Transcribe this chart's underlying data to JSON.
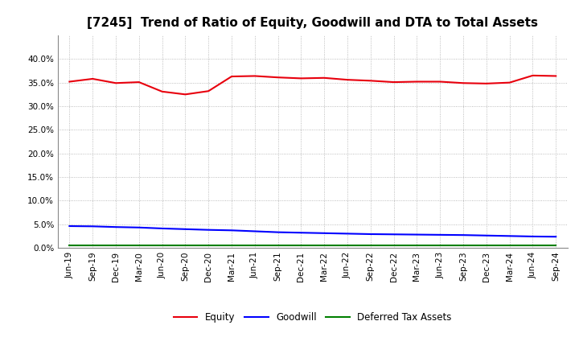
{
  "title": "[7245]  Trend of Ratio of Equity, Goodwill and DTA to Total Assets",
  "x_labels": [
    "Jun-19",
    "Sep-19",
    "Dec-19",
    "Mar-20",
    "Jun-20",
    "Sep-20",
    "Dec-20",
    "Mar-21",
    "Jun-21",
    "Sep-21",
    "Dec-21",
    "Mar-22",
    "Jun-22",
    "Sep-22",
    "Dec-22",
    "Mar-23",
    "Jun-23",
    "Sep-23",
    "Dec-23",
    "Mar-24",
    "Jun-24",
    "Sep-24"
  ],
  "equity": [
    35.2,
    35.8,
    34.9,
    35.1,
    33.1,
    32.5,
    33.2,
    36.3,
    36.4,
    36.1,
    35.9,
    36.0,
    35.6,
    35.4,
    35.1,
    35.2,
    35.2,
    34.9,
    34.8,
    35.0,
    36.5,
    36.4
  ],
  "goodwill": [
    4.6,
    4.55,
    4.4,
    4.3,
    4.1,
    3.95,
    3.8,
    3.7,
    3.5,
    3.3,
    3.2,
    3.1,
    3.0,
    2.9,
    2.85,
    2.8,
    2.75,
    2.7,
    2.6,
    2.5,
    2.4,
    2.35
  ],
  "dta": [
    0.45,
    0.45,
    0.45,
    0.45,
    0.45,
    0.45,
    0.45,
    0.45,
    0.45,
    0.45,
    0.45,
    0.45,
    0.45,
    0.45,
    0.45,
    0.45,
    0.45,
    0.45,
    0.45,
    0.45,
    0.45,
    0.45
  ],
  "equity_color": "#e8000d",
  "goodwill_color": "#0000ff",
  "dta_color": "#008000",
  "ylim": [
    0,
    45
  ],
  "yticks": [
    0.0,
    5.0,
    10.0,
    15.0,
    20.0,
    25.0,
    30.0,
    35.0,
    40.0
  ],
  "background_color": "#ffffff",
  "plot_bg_color": "#ffffff",
  "grid_color": "#aaaaaa",
  "title_fontsize": 11,
  "tick_fontsize": 7.5,
  "legend_labels": [
    "Equity",
    "Goodwill",
    "Deferred Tax Assets"
  ]
}
